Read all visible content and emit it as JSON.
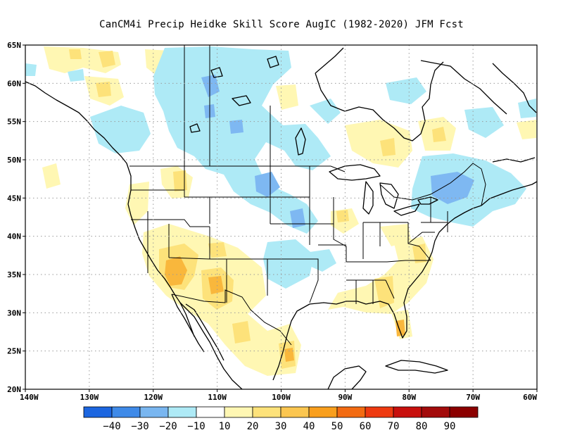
{
  "title": "CanCM4i Precip Heidke Skill Score AugIC (1982-2020) JFM Fcst",
  "map": {
    "lat_range": [
      20,
      65
    ],
    "lon_range": [
      -140,
      -60
    ],
    "lat_ticks": [
      "20N",
      "25N",
      "30N",
      "35N",
      "40N",
      "45N",
      "50N",
      "55N",
      "60N",
      "65N"
    ],
    "lon_ticks": [
      "140W",
      "130W",
      "120W",
      "110W",
      "100W",
      "90W",
      "80W",
      "70W",
      "60W"
    ],
    "grid": "dotted",
    "fill_colors": {
      "lightblue": "#aeeaf6",
      "blue": "#7eb8f2",
      "lightyellow": "#fff7b3",
      "yellow": "#fde27a",
      "orange": "#f9b73c"
    }
  },
  "colorbar": {
    "labels": [
      "-40",
      "-30",
      "-20",
      "-10",
      "10",
      "20",
      "30",
      "40",
      "50",
      "60",
      "70",
      "80",
      "90"
    ],
    "colors": [
      "#1c66e0",
      "#3f8ae8",
      "#79b6f0",
      "#aeeaf6",
      "#ffffff",
      "#fff7b3",
      "#fde27a",
      "#fbc650",
      "#f99f1d",
      "#f36b12",
      "#ee3a10",
      "#c8100d",
      "#a30b0b",
      "#8b0000"
    ]
  }
}
